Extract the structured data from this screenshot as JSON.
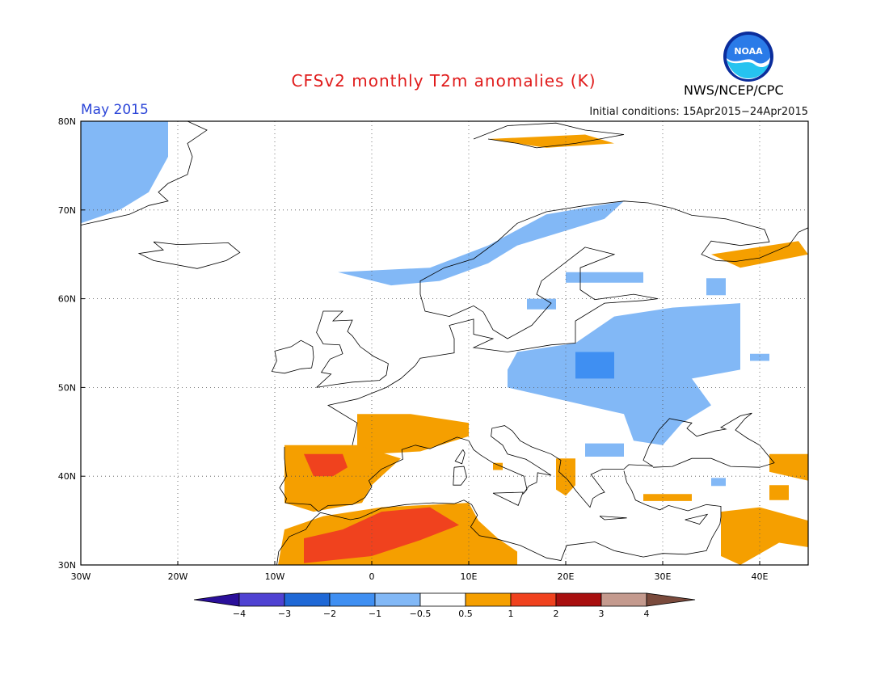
{
  "header": {
    "title": "CFSv2 monthly T2m anomalies (K)",
    "month": "May 2015",
    "initial_conditions": "Initial conditions: 15Apr2015−24Apr2015",
    "agency": "NWS/NCEP/CPC",
    "logo_text": "NOAA"
  },
  "map": {
    "region": "Europe",
    "lon_range": [
      -30,
      45
    ],
    "lat_range": [
      30,
      80
    ],
    "lon_ticks": [
      {
        "value": -30,
        "label": "30W"
      },
      {
        "value": -20,
        "label": "20W"
      },
      {
        "value": -10,
        "label": "10W"
      },
      {
        "value": 0,
        "label": "0"
      },
      {
        "value": 10,
        "label": "10E"
      },
      {
        "value": 20,
        "label": "20E"
      },
      {
        "value": 30,
        "label": "30E"
      },
      {
        "value": 40,
        "label": "40E"
      }
    ],
    "lat_ticks": [
      {
        "value": 30,
        "label": "30N"
      },
      {
        "value": 40,
        "label": "40N"
      },
      {
        "value": 50,
        "label": "50N"
      },
      {
        "value": 60,
        "label": "60N"
      },
      {
        "value": 70,
        "label": "70N"
      },
      {
        "value": 80,
        "label": "80N"
      }
    ],
    "grid_style": "dotted",
    "anomaly_regions": [
      {
        "name": "Greenland",
        "level": -1,
        "poly": [
          [
            -30,
            80
          ],
          [
            -21,
            80
          ],
          [
            -21,
            76
          ],
          [
            -23,
            72
          ],
          [
            -26,
            70
          ],
          [
            -30,
            68.5
          ]
        ]
      },
      {
        "name": "Norway coast",
        "level": -1,
        "poly": [
          [
            -3.5,
            63
          ],
          [
            6,
            63.5
          ],
          [
            12,
            66
          ],
          [
            18,
            69.5
          ],
          [
            26,
            71
          ],
          [
            24,
            69
          ],
          [
            15,
            66
          ],
          [
            12,
            64
          ],
          [
            7,
            62
          ],
          [
            2,
            61.5
          ]
        ]
      },
      {
        "name": "N Finland",
        "level": -1,
        "poly": [
          [
            20,
            63
          ],
          [
            28,
            63
          ],
          [
            28,
            61.8
          ],
          [
            20,
            61.8
          ]
        ]
      },
      {
        "name": "S Norway patch",
        "level": -1,
        "poly": [
          [
            16,
            60
          ],
          [
            19,
            60
          ],
          [
            19,
            58.8
          ],
          [
            16,
            58.8
          ]
        ]
      },
      {
        "name": "Baltic and Poland",
        "level": -1,
        "poly": [
          [
            15,
            54
          ],
          [
            21,
            55
          ],
          [
            25,
            58
          ],
          [
            31,
            59
          ],
          [
            38,
            59.5
          ],
          [
            38,
            52
          ],
          [
            33,
            51
          ],
          [
            35,
            48
          ],
          [
            32,
            46
          ],
          [
            30,
            43.5
          ],
          [
            27,
            44
          ],
          [
            26,
            47
          ],
          [
            22,
            48
          ],
          [
            18,
            49
          ],
          [
            14,
            50
          ],
          [
            14,
            52
          ]
        ]
      },
      {
        "name": "Russia patch",
        "level": -1,
        "poly": [
          [
            34.5,
            62.3
          ],
          [
            36.5,
            62.3
          ],
          [
            36.5,
            60.4
          ],
          [
            34.5,
            60.4
          ]
        ]
      },
      {
        "name": "Russia E patch",
        "level": -1,
        "poly": [
          [
            39,
            53.8
          ],
          [
            41,
            53.8
          ],
          [
            41,
            53
          ],
          [
            39,
            53
          ]
        ]
      },
      {
        "name": "Balkans patch",
        "level": -1,
        "poly": [
          [
            22,
            43.7
          ],
          [
            26,
            43.7
          ],
          [
            26,
            42.2
          ],
          [
            22,
            42.2
          ]
        ]
      },
      {
        "name": "Turkey patch",
        "level": -1,
        "poly": [
          [
            35,
            39.8
          ],
          [
            36.5,
            39.8
          ],
          [
            36.5,
            38.9
          ],
          [
            35,
            38.9
          ]
        ]
      },
      {
        "name": "Poland core",
        "level": -2,
        "poly": [
          [
            21,
            54
          ],
          [
            25,
            54
          ],
          [
            25,
            51
          ],
          [
            21,
            51
          ]
        ]
      },
      {
        "name": "Svalbard",
        "level": 0.5,
        "poly": [
          [
            12,
            78
          ],
          [
            22,
            78.5
          ],
          [
            25,
            77.5
          ],
          [
            18,
            77
          ]
        ]
      },
      {
        "name": "NW Russia",
        "level": 0.5,
        "poly": [
          [
            35,
            65
          ],
          [
            44,
            66.5
          ],
          [
            45,
            65
          ],
          [
            38,
            63.5
          ]
        ]
      },
      {
        "name": "France",
        "level": 0.5,
        "poly": [
          [
            -1.5,
            47
          ],
          [
            4,
            47
          ],
          [
            10,
            46
          ],
          [
            10,
            44.5
          ],
          [
            5,
            42.8
          ],
          [
            0,
            42.5
          ],
          [
            -1.5,
            43.5
          ]
        ]
      },
      {
        "name": "Iberia",
        "level": 0.5,
        "poly": [
          [
            -9,
            43.5
          ],
          [
            -1.5,
            43.5
          ],
          [
            3,
            42
          ],
          [
            0,
            39
          ],
          [
            -1,
            37
          ],
          [
            -6,
            36
          ],
          [
            -9,
            37
          ]
        ]
      },
      {
        "name": "North Africa",
        "level": 0.5,
        "poly": [
          [
            -10,
            28
          ],
          [
            -9,
            34
          ],
          [
            -5,
            35.5
          ],
          [
            1,
            36.5
          ],
          [
            10,
            37
          ],
          [
            11,
            35
          ],
          [
            13,
            33
          ],
          [
            15,
            31.5
          ],
          [
            15,
            30
          ],
          [
            -10,
            30
          ]
        ]
      },
      {
        "name": "Greece patch",
        "level": 0.5,
        "poly": [
          [
            19,
            42
          ],
          [
            21,
            42
          ],
          [
            21,
            39
          ],
          [
            20,
            37.8
          ],
          [
            19,
            38.5
          ]
        ]
      },
      {
        "name": "Italy patch",
        "level": 0.5,
        "poly": [
          [
            12.5,
            41.5
          ],
          [
            13.5,
            41.5
          ],
          [
            13.5,
            40.7
          ],
          [
            12.5,
            40.7
          ]
        ]
      },
      {
        "name": "Turkey S patch",
        "level": 0.5,
        "poly": [
          [
            28,
            38
          ],
          [
            33,
            38
          ],
          [
            33,
            37.2
          ],
          [
            28,
            37.2
          ]
        ]
      },
      {
        "name": "Caucasus",
        "level": 0.5,
        "poly": [
          [
            41,
            42.5
          ],
          [
            45,
            42.5
          ],
          [
            45,
            39.5
          ],
          [
            41,
            40.5
          ]
        ]
      },
      {
        "name": "Middle East",
        "level": 0.5,
        "poly": [
          [
            36,
            36
          ],
          [
            40,
            36.5
          ],
          [
            45,
            35
          ],
          [
            45,
            32
          ],
          [
            42,
            32.5
          ],
          [
            38,
            30
          ],
          [
            36,
            31
          ]
        ]
      },
      {
        "name": "Caspian W patch",
        "level": 0.5,
        "poly": [
          [
            41,
            39
          ],
          [
            43,
            39
          ],
          [
            43,
            37.3
          ],
          [
            41,
            37.3
          ]
        ]
      },
      {
        "name": "Iberia core",
        "level": 1,
        "poly": [
          [
            -7,
            42.5
          ],
          [
            -3,
            42.5
          ],
          [
            -2.5,
            41
          ],
          [
            -4,
            40
          ],
          [
            -6,
            40
          ]
        ]
      },
      {
        "name": "North Africa core",
        "level": 1,
        "poly": [
          [
            -7,
            33
          ],
          [
            -3,
            34
          ],
          [
            1,
            36
          ],
          [
            6,
            36.5
          ],
          [
            9,
            34.5
          ],
          [
            5,
            32.8
          ],
          [
            0,
            31
          ],
          [
            -7,
            30.2
          ]
        ]
      }
    ]
  },
  "colorbar": {
    "tick_labels": [
      "−4",
      "−3",
      "−2",
      "−1",
      "−0.5",
      "0.5",
      "1",
      "2",
      "3",
      "4"
    ],
    "colors": [
      "#2a0f9a",
      "#4f42d2",
      "#1f68d6",
      "#3f8ff2",
      "#82b8f6",
      "#ffffff",
      "#f59f00",
      "#f0421e",
      "#a80f0f",
      "#c49a8e",
      "#7a4a3c"
    ]
  }
}
